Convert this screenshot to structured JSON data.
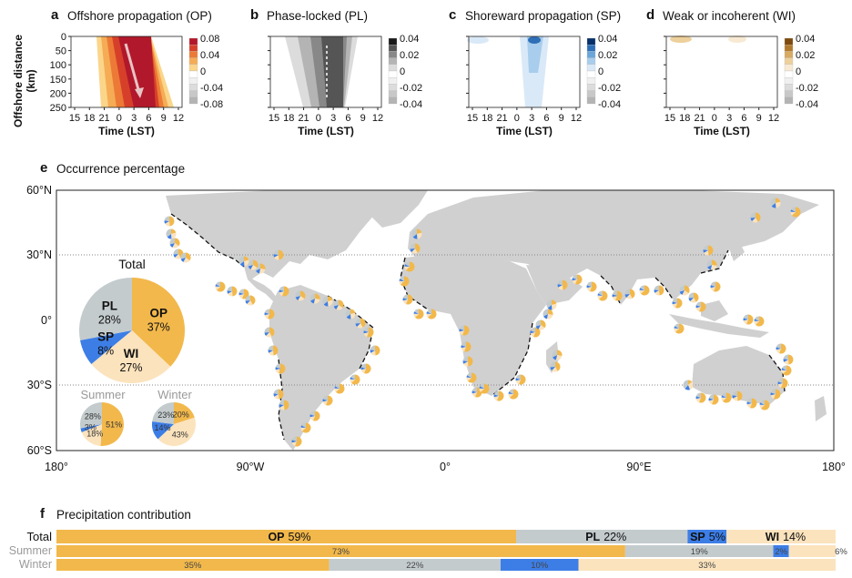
{
  "panels": [
    {
      "letter": "a",
      "title": "Offshore propagation (OP)",
      "cmap": "op",
      "cticks": [
        "0.08",
        "0.04",
        "0",
        "-0.04",
        "-0.08"
      ]
    },
    {
      "letter": "b",
      "title": "Phase-locked (PL)",
      "cmap": "pl",
      "cticks": [
        "0.04",
        "0.02",
        "0",
        "-0.02",
        "-0.04"
      ]
    },
    {
      "letter": "c",
      "title": "Shoreward propagation (SP)",
      "cmap": "sp",
      "cticks": [
        "0.04",
        "0.02",
        "0",
        "-0.02",
        "-0.04"
      ]
    },
    {
      "letter": "d",
      "title": "Weak or incoherent (WI)",
      "cmap": "wi",
      "cticks": [
        "0.04",
        "0.02",
        "0",
        "-0.02",
        "-0.04"
      ]
    }
  ],
  "hovmoller": {
    "ylabel": "Offshore distance (km)",
    "xlabel": "Time (LST)",
    "yticks": [
      "0",
      "50",
      "100",
      "150",
      "200",
      "250"
    ],
    "xticks": [
      "15",
      "18",
      "21",
      "0",
      "3",
      "6",
      "9",
      "12"
    ]
  },
  "panel_e": {
    "letter": "e",
    "title": "Occurrence percentage",
    "lat_ticks": [
      "60°N",
      "30°N",
      "0°",
      "30°S",
      "60°S"
    ],
    "lon_ticks": [
      "180°",
      "90°W",
      "0°",
      "90°E",
      "180°"
    ],
    "total_pie": {
      "title": "Total",
      "slices": [
        {
          "label": "OP",
          "value": 37,
          "text": "37%",
          "color": "#f2b84b"
        },
        {
          "label": "WI",
          "value": 27,
          "text": "27%",
          "color": "#fbe3bd"
        },
        {
          "label": "SP",
          "value": 8,
          "text": "8%",
          "color": "#3d7ee6"
        },
        {
          "label": "PL",
          "value": 28,
          "text": "28%",
          "color": "#c3cbcd"
        }
      ]
    },
    "summer_pie": {
      "title": "Summer",
      "slices": [
        {
          "label": "OP",
          "value": 51,
          "text": "51%",
          "color": "#f2b84b"
        },
        {
          "label": "WI",
          "value": 18,
          "text": "18%",
          "color": "#fbe3bd"
        },
        {
          "label": "SP",
          "value": 3,
          "text": "3%",
          "color": "#3d7ee6"
        },
        {
          "label": "PL",
          "value": 28,
          "text": "28%",
          "color": "#c3cbcd"
        }
      ]
    },
    "winter_pie": {
      "title": "Winter",
      "slices": [
        {
          "label": "OP",
          "value": 20,
          "text": "20%",
          "color": "#f2b84b"
        },
        {
          "label": "WI",
          "value": 43,
          "text": "43%",
          "color": "#fbe3bd"
        },
        {
          "label": "SP",
          "value": 14,
          "text": "14%",
          "color": "#3d7ee6"
        },
        {
          "label": "PL",
          "value": 23,
          "text": "23%",
          "color": "#c3cbcd"
        }
      ]
    }
  },
  "panel_f": {
    "letter": "f",
    "title": "Precipitation contribution",
    "chart_data": {
      "type": "bar",
      "categories": [
        "Total",
        "Summer",
        "Winter"
      ],
      "series": [
        {
          "name": "OP",
          "values": [
            59,
            73,
            35
          ],
          "labels": [
            "59%",
            "73%",
            "35%"
          ]
        },
        {
          "name": "PL",
          "values": [
            22,
            19,
            22
          ],
          "labels": [
            "22%",
            "19%",
            "22%"
          ]
        },
        {
          "name": "SP",
          "values": [
            5,
            2,
            10
          ],
          "labels": [
            "5%",
            "2%",
            "10%"
          ]
        },
        {
          "name": "WI",
          "values": [
            14,
            6,
            33
          ],
          "labels": [
            "14%",
            "6%",
            "33%"
          ]
        }
      ]
    }
  },
  "colors": {
    "op": "#f2b84b",
    "pl": "#c3cbcd",
    "sp": "#3d7ee6",
    "wi": "#fbe3bd",
    "land": "#d0d0d0",
    "season_text": "#9a9a9a"
  }
}
